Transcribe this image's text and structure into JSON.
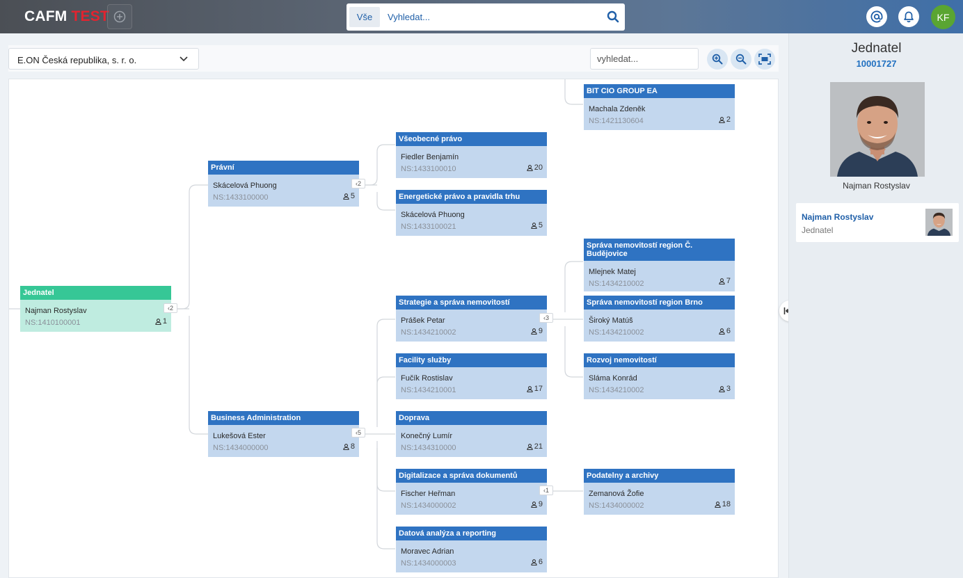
{
  "app": {
    "logo_main": "CAFM",
    "logo_env": "TEST"
  },
  "search": {
    "scope_tab": "Vše",
    "placeholder": "Vyhledat..."
  },
  "user": {
    "initials": "KF"
  },
  "toolbar": {
    "company": "E.ON Česká republika, s. r. o.",
    "search_placeholder": "vyhledat..."
  },
  "org_nodes": [
    {
      "title": "BIT CIO GROUP EA",
      "person": "Machala Zdeněk",
      "ns": "NS:1421130604",
      "count": "2"
    },
    {
      "title": "Všeobecné právo",
      "person": "Fiedler Benjamín",
      "ns": "NS:1433100010",
      "count": "20"
    },
    {
      "title": "Právní",
      "person": "Skácelová Phuong",
      "ns": "NS:1433100000",
      "count": "5",
      "expander": "2"
    },
    {
      "title": "Energetické právo a pravidla trhu",
      "person": "Skácelová Phuong",
      "ns": "NS:1433100021",
      "count": "5"
    },
    {
      "title": "Správa nemovitostí region Č. Budějovice",
      "person": "Mlejnek Matej",
      "ns": "NS:1434210002",
      "count": "7"
    },
    {
      "title": "Jednatel",
      "person": "Najman Rostyslav",
      "ns": "NS:1410100001",
      "count": "1",
      "expander": "2"
    },
    {
      "title": "Strategie a správa nemovitostí",
      "person": "Prášek Petar",
      "ns": "NS:1434210002",
      "count": "9",
      "expander": "3"
    },
    {
      "title": "Správa nemovitostí region Brno",
      "person": "Široký Matúš",
      "ns": "NS:1434210002",
      "count": "6"
    },
    {
      "title": "Facility služby",
      "person": "Fučík Rostislav",
      "ns": "NS:1434210001",
      "count": "17"
    },
    {
      "title": "Rozvoj nemovitostí",
      "person": "Sláma Konrád",
      "ns": "NS:1434210002",
      "count": "3"
    },
    {
      "title": "Business Administration",
      "person": "Lukešová Ester",
      "ns": "NS:1434000000",
      "count": "8",
      "expander": "5"
    },
    {
      "title": "Doprava",
      "person": "Konečný Lumír",
      "ns": "NS:1434310000",
      "count": "21"
    },
    {
      "title": "Digitalizace a správa dokumentů",
      "person": "Fischer Heřman",
      "ns": "NS:1434000002",
      "count": "9",
      "expander": "1"
    },
    {
      "title": "Podatelny a archivy",
      "person": "Zemanová Žofie",
      "ns": "NS:1434000002",
      "count": "18"
    },
    {
      "title": "Datová analýza a reporting",
      "person": "Moravec Adrian",
      "ns": "NS:1434000003",
      "count": "6"
    }
  ],
  "detail": {
    "title": "Jednatel",
    "code": "10001727",
    "name": "Najman Rostyslav",
    "card_name": "Najman Rostyslav",
    "card_role": "Jednatel"
  },
  "colors": {
    "node_header": "#2f73c2",
    "node_body": "#c3d7ee",
    "root_header": "#36c796",
    "root_body": "#bfece0"
  }
}
